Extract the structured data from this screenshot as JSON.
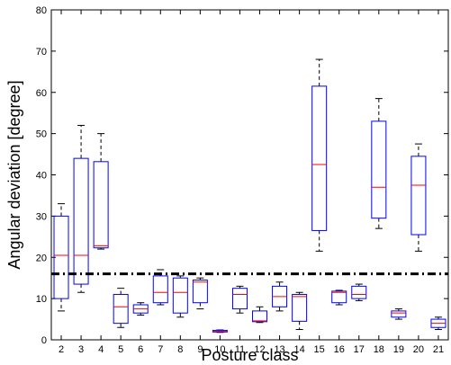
{
  "chart_data": {
    "type": "box",
    "xlabel": "Posture class",
    "ylabel": "Angular deviation [degree]",
    "ylim": [
      0,
      80
    ],
    "yticks": [
      0,
      10,
      20,
      30,
      40,
      50,
      60,
      70,
      80
    ],
    "categories": [
      "2",
      "3",
      "4",
      "5",
      "6",
      "7",
      "8",
      "9",
      "10",
      "11",
      "12",
      "13",
      "14",
      "15",
      "16",
      "17",
      "18",
      "19",
      "20",
      "21"
    ],
    "boxes": [
      {
        "class": "2",
        "min": 7,
        "q1": 10,
        "median": 20.5,
        "q3": 30,
        "max": 33
      },
      {
        "class": "3",
        "min": 11.5,
        "q1": 13.5,
        "median": 20.5,
        "q3": 44,
        "max": 52
      },
      {
        "class": "4",
        "min": 22,
        "q1": 22.3,
        "median": 22.8,
        "q3": 43.2,
        "max": 50
      },
      {
        "class": "5",
        "min": 3,
        "q1": 4,
        "median": 8,
        "q3": 11,
        "max": 12.5
      },
      {
        "class": "6",
        "min": 6,
        "q1": 6.5,
        "median": 7.5,
        "q3": 8.5,
        "max": 9
      },
      {
        "class": "7",
        "min": 8.5,
        "q1": 9,
        "median": 11.5,
        "q3": 15.5,
        "max": 17
      },
      {
        "class": "8",
        "min": 5.5,
        "q1": 6.5,
        "median": 11.5,
        "q3": 15,
        "max": 15.5
      },
      {
        "class": "9",
        "min": 7.5,
        "q1": 9,
        "median": 14,
        "q3": 14.5,
        "max": 15
      },
      {
        "class": "10",
        "min": 1.8,
        "q1": 1.9,
        "median": 2.1,
        "q3": 2.3,
        "max": 2.4
      },
      {
        "class": "11",
        "min": 6.5,
        "q1": 7.5,
        "median": 11,
        "q3": 12.5,
        "max": 13
      },
      {
        "class": "12",
        "min": 4.2,
        "q1": 4.4,
        "median": 4.6,
        "q3": 7,
        "max": 8
      },
      {
        "class": "13",
        "min": 7,
        "q1": 8,
        "median": 10.5,
        "q3": 13,
        "max": 14
      },
      {
        "class": "14",
        "min": 2.5,
        "q1": 4.5,
        "median": 10.5,
        "q3": 11,
        "max": 11.5
      },
      {
        "class": "15",
        "min": 21.5,
        "q1": 26.5,
        "median": 42.5,
        "q3": 61.5,
        "max": 68
      },
      {
        "class": "16",
        "min": 8.5,
        "q1": 9,
        "median": 11.5,
        "q3": 11.8,
        "max": 12
      },
      {
        "class": "17",
        "min": 9.5,
        "q1": 10,
        "median": 11,
        "q3": 13,
        "max": 13.5
      },
      {
        "class": "18",
        "min": 27,
        "q1": 29.5,
        "median": 37,
        "q3": 53,
        "max": 58.5
      },
      {
        "class": "19",
        "min": 5,
        "q1": 5.5,
        "median": 6.5,
        "q3": 7,
        "max": 7.5
      },
      {
        "class": "20",
        "min": 21.5,
        "q1": 25.5,
        "median": 37.5,
        "q3": 44.5,
        "max": 47.5
      },
      {
        "class": "21",
        "min": 2.5,
        "q1": 3,
        "median": 4,
        "q3": 5,
        "max": 5.5
      }
    ],
    "threshold": 16,
    "colors": {
      "box": "#0000ff",
      "median": "#ff0000",
      "whisker": "#000000",
      "threshold": "#000000"
    }
  }
}
